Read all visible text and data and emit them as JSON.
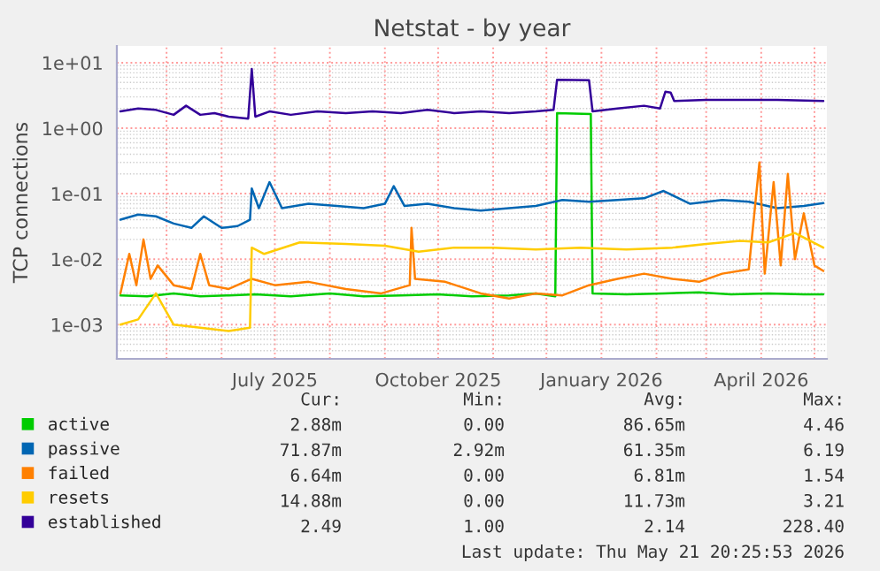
{
  "chart_data": {
    "type": "line",
    "title": "Netstat - by year",
    "ylabel": "TCP connections",
    "log": true,
    "grid": true,
    "legend": "bottom",
    "ylim": [
      0.0003,
      18
    ],
    "yticks": [
      {
        "value": 0.001,
        "label": "1e-03"
      },
      {
        "value": 0.01,
        "label": "1e-02"
      },
      {
        "value": 0.1,
        "label": "1e-01"
      },
      {
        "value": 1,
        "label": "1e+00"
      },
      {
        "value": 10,
        "label": "1e+01"
      }
    ],
    "xlim": [
      "2025-04-03",
      "2026-05-08"
    ],
    "xticks": [
      {
        "value": "2025-05-01",
        "label": null
      },
      {
        "value": "2025-06-01",
        "label": null
      },
      {
        "value": "2025-07-01",
        "label": "July 2025"
      },
      {
        "value": "2025-08-01",
        "label": null
      },
      {
        "value": "2025-09-01",
        "label": null
      },
      {
        "value": "2025-10-01",
        "label": "October 2025"
      },
      {
        "value": "2025-11-01",
        "label": null
      },
      {
        "value": "2025-12-01",
        "label": null
      },
      {
        "value": "2026-01-01",
        "label": "January 2026"
      },
      {
        "value": "2026-02-01",
        "label": null
      },
      {
        "value": "2026-03-01",
        "label": null
      },
      {
        "value": "2026-04-01",
        "label": "April 2026"
      },
      {
        "value": "2026-05-01",
        "label": null
      }
    ],
    "series": [
      {
        "name": "active",
        "color": "#00cc00",
        "x": [
          "2025-04-05",
          "2025-04-20",
          "2025-05-05",
          "2025-05-20",
          "2025-06-05",
          "2025-06-20",
          "2025-07-10",
          "2025-08-01",
          "2025-08-20",
          "2025-09-10",
          "2025-10-01",
          "2025-10-20",
          "2025-11-10",
          "2025-11-25",
          "2025-12-06",
          "2025-12-07",
          "2025-12-26",
          "2025-12-27",
          "2026-01-15",
          "2026-02-05",
          "2026-02-25",
          "2026-03-15",
          "2026-04-05",
          "2026-04-25",
          "2026-05-06"
        ],
        "values": [
          0.0028,
          0.0027,
          0.003,
          0.0027,
          0.0028,
          0.0029,
          0.0027,
          0.003,
          0.0027,
          0.0028,
          0.0029,
          0.0027,
          0.0028,
          0.003,
          0.0027,
          1.7,
          1.65,
          0.003,
          0.0029,
          0.003,
          0.0031,
          0.0029,
          0.003,
          0.0029,
          0.0029
        ]
      },
      {
        "name": "passive",
        "color": "#0066b3",
        "x": [
          "2025-04-05",
          "2025-04-15",
          "2025-04-25",
          "2025-05-05",
          "2025-05-15",
          "2025-05-22",
          "2025-06-01",
          "2025-06-10",
          "2025-06-17",
          "2025-06-18",
          "2025-06-22",
          "2025-06-28",
          "2025-07-05",
          "2025-07-20",
          "2025-08-05",
          "2025-08-20",
          "2025-09-01",
          "2025-09-06",
          "2025-09-12",
          "2025-09-25",
          "2025-10-10",
          "2025-10-25",
          "2025-11-10",
          "2025-11-25",
          "2025-12-10",
          "2025-12-25",
          "2026-01-10",
          "2026-01-25",
          "2026-02-05",
          "2026-02-20",
          "2026-03-10",
          "2026-03-25",
          "2026-04-10",
          "2026-04-25",
          "2026-05-06"
        ],
        "values": [
          0.04,
          0.048,
          0.045,
          0.035,
          0.03,
          0.045,
          0.03,
          0.032,
          0.04,
          0.12,
          0.06,
          0.15,
          0.06,
          0.07,
          0.065,
          0.06,
          0.07,
          0.13,
          0.065,
          0.07,
          0.06,
          0.055,
          0.06,
          0.065,
          0.08,
          0.075,
          0.08,
          0.085,
          0.11,
          0.07,
          0.08,
          0.075,
          0.06,
          0.065,
          0.072
        ]
      },
      {
        "name": "failed",
        "color": "#ff8000",
        "x": [
          "2025-04-05",
          "2025-04-10",
          "2025-04-14",
          "2025-04-18",
          "2025-04-22",
          "2025-04-26",
          "2025-05-05",
          "2025-05-15",
          "2025-05-20",
          "2025-05-25",
          "2025-06-05",
          "2025-06-18",
          "2025-07-01",
          "2025-07-20",
          "2025-08-10",
          "2025-08-30",
          "2025-09-15",
          "2025-09-16",
          "2025-09-18",
          "2025-10-05",
          "2025-10-25",
          "2025-11-10",
          "2025-11-25",
          "2025-12-10",
          "2025-12-25",
          "2026-01-10",
          "2026-01-25",
          "2026-02-10",
          "2026-02-25",
          "2026-03-10",
          "2026-03-25",
          "2026-03-31",
          "2026-04-03",
          "2026-04-08",
          "2026-04-12",
          "2026-04-16",
          "2026-04-20",
          "2026-04-25",
          "2026-05-01",
          "2026-05-06"
        ],
        "values": [
          0.003,
          0.012,
          0.004,
          0.02,
          0.005,
          0.008,
          0.004,
          0.0035,
          0.012,
          0.004,
          0.0035,
          0.005,
          0.004,
          0.0045,
          0.0035,
          0.003,
          0.004,
          0.03,
          0.005,
          0.0045,
          0.003,
          0.0025,
          0.003,
          0.0028,
          0.004,
          0.005,
          0.006,
          0.005,
          0.0045,
          0.006,
          0.007,
          0.3,
          0.006,
          0.15,
          0.008,
          0.2,
          0.01,
          0.05,
          0.008,
          0.0066
        ]
      },
      {
        "name": "resets",
        "color": "#ffcc00",
        "x": [
          "2025-04-05",
          "2025-04-15",
          "2025-04-25",
          "2025-05-05",
          "2025-05-20",
          "2025-06-05",
          "2025-06-17",
          "2025-06-18",
          "2025-06-25",
          "2025-07-15",
          "2025-08-10",
          "2025-09-01",
          "2025-09-20",
          "2025-10-10",
          "2025-11-01",
          "2025-11-25",
          "2025-12-20",
          "2026-01-15",
          "2026-02-10",
          "2026-03-01",
          "2026-03-20",
          "2026-04-05",
          "2026-04-20",
          "2026-05-06"
        ],
        "values": [
          0.001,
          0.0012,
          0.003,
          0.001,
          0.0009,
          0.0008,
          0.0009,
          0.015,
          0.012,
          0.018,
          0.017,
          0.016,
          0.013,
          0.015,
          0.015,
          0.014,
          0.015,
          0.014,
          0.015,
          0.017,
          0.019,
          0.018,
          0.025,
          0.015
        ]
      },
      {
        "name": "established",
        "color": "#330099",
        "x": [
          "2025-04-05",
          "2025-04-15",
          "2025-04-25",
          "2025-05-05",
          "2025-05-12",
          "2025-05-20",
          "2025-05-28",
          "2025-06-05",
          "2025-06-16",
          "2025-06-18",
          "2025-06-20",
          "2025-06-28",
          "2025-07-10",
          "2025-07-25",
          "2025-08-10",
          "2025-08-25",
          "2025-09-10",
          "2025-09-25",
          "2025-10-10",
          "2025-10-25",
          "2025-11-10",
          "2025-11-25",
          "2025-12-05",
          "2025-12-07",
          "2025-12-25",
          "2025-12-27",
          "2026-01-10",
          "2026-01-25",
          "2026-02-03",
          "2026-02-06",
          "2026-02-09",
          "2026-02-11",
          "2026-03-01",
          "2026-03-20",
          "2026-04-10",
          "2026-05-06"
        ],
        "values": [
          1.8,
          2.0,
          1.9,
          1.6,
          2.2,
          1.6,
          1.7,
          1.5,
          1.4,
          8.0,
          1.5,
          1.8,
          1.6,
          1.8,
          1.7,
          1.8,
          1.7,
          1.9,
          1.7,
          1.8,
          1.7,
          1.8,
          1.9,
          5.5,
          5.4,
          1.8,
          2.0,
          2.2,
          2.0,
          3.6,
          3.5,
          2.6,
          2.7,
          2.7,
          2.7,
          2.6
        ]
      }
    ],
    "annotations": [
      "Cur:",
      "Min:",
      "Avg:",
      "Max:",
      "2.88m",
      "0.00",
      "86.65m",
      "4.46",
      "71.87m",
      "2.92m",
      "61.35m",
      "6.19",
      "6.64m",
      "0.00",
      "6.81m",
      "1.54",
      "14.88m",
      "0.00",
      "11.73m",
      "3.21",
      "2.49",
      "1.00",
      "2.14",
      "228.40",
      "Last update: Thu May 21 20:25:53 2026"
    ]
  }
}
